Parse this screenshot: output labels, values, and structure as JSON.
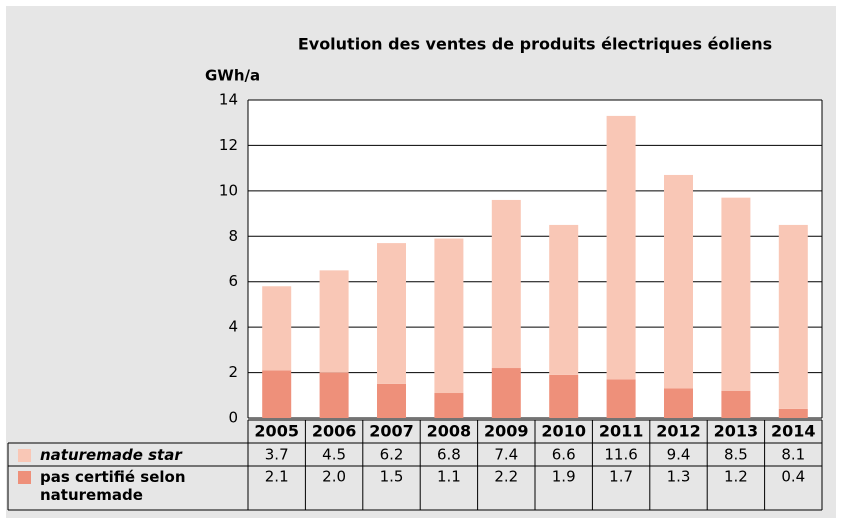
{
  "chart_data": {
    "type": "stacked_bar",
    "title": "Evolution des ventes de produits électriques éoliens",
    "y_label": "GWh/a",
    "categories": [
      "2005",
      "2006",
      "2007",
      "2008",
      "2009",
      "2010",
      "2011",
      "2012",
      "2013",
      "2014"
    ],
    "series": [
      {
        "name": "pas certifié selon naturemade",
        "color": "#ee907a",
        "values": [
          2.1,
          2.0,
          1.5,
          1.1,
          2.2,
          1.9,
          1.7,
          1.3,
          1.2,
          0.4
        ],
        "value_labels": [
          "2.1",
          "2.0",
          "1.5",
          "1.1",
          "2.2",
          "1.9",
          "1.7",
          "1.3",
          "1.2",
          "0.4"
        ]
      },
      {
        "name": "naturemade star",
        "color": "#f9c7b6",
        "values": [
          3.7,
          4.5,
          6.2,
          6.8,
          7.4,
          6.6,
          11.6,
          9.4,
          8.5,
          8.1
        ],
        "value_labels": [
          "3.7",
          "4.5",
          "6.2",
          "6.8",
          "7.4",
          "6.6",
          "11.6",
          "9.4",
          "8.5",
          "8.1"
        ]
      }
    ],
    "ylim": [
      0,
      14
    ],
    "yticks": [
      0,
      2,
      4,
      6,
      8,
      10,
      12,
      14
    ],
    "grid": true
  }
}
